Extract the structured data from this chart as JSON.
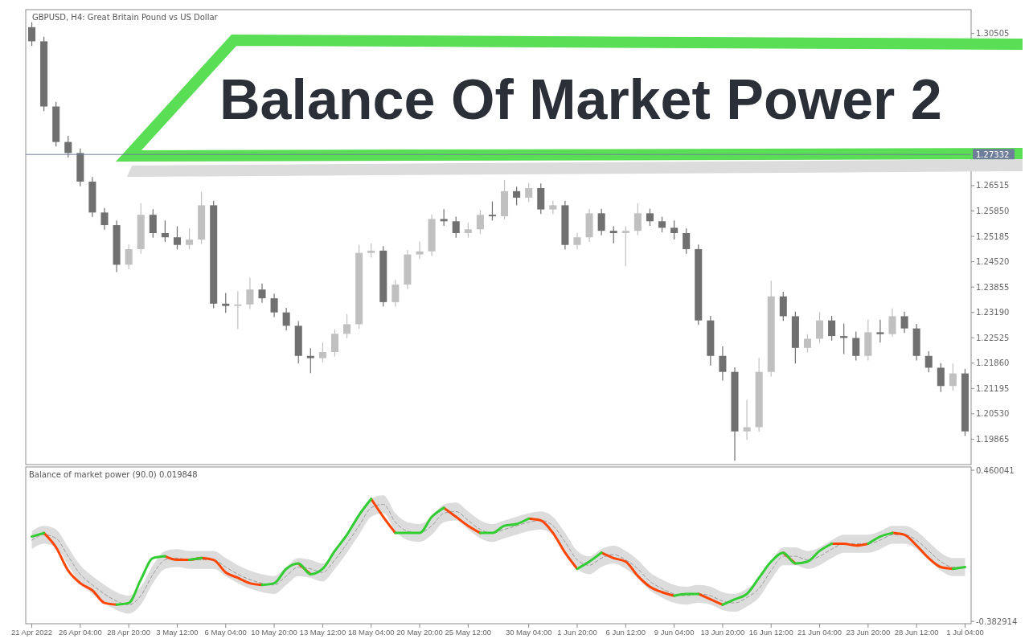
{
  "chart_data": [
    {
      "type": "candlestick",
      "title": "Balance Of Market Power 2",
      "annotations": [
        "GBPUSD, H4:  Great Britain Pound vs US Dollar"
      ],
      "categories": [
        null,
        null,
        null,
        null,
        null,
        null,
        null,
        null,
        null,
        null,
        null,
        null,
        null,
        null,
        null,
        null,
        null,
        null,
        null,
        null,
        null,
        null,
        null,
        null,
        null,
        null,
        null,
        null,
        null,
        null,
        null,
        null,
        null,
        null,
        null,
        null,
        null,
        null,
        null,
        null,
        null,
        null,
        null,
        null,
        null,
        null,
        null,
        null,
        null,
        null,
        null,
        null,
        null,
        null,
        null,
        null,
        null,
        null,
        null,
        null,
        null,
        null,
        null,
        null,
        null,
        null,
        null,
        null,
        null,
        null,
        null,
        null,
        null,
        null,
        null,
        null,
        null,
        null
      ],
      "ohlc": [
        [
          1.3067,
          1.308,
          1.3018,
          1.303
        ],
        [
          1.303,
          1.3042,
          1.2847,
          1.2859
        ],
        [
          1.2859,
          1.2871,
          1.2754,
          1.2766
        ],
        [
          1.2766,
          1.2782,
          1.2725,
          1.2737
        ],
        [
          1.2737,
          1.2749,
          1.265,
          1.2662
        ],
        [
          1.2662,
          1.2674,
          1.2569,
          1.2581
        ],
        [
          1.2581,
          1.2593,
          1.2536,
          1.2548
        ],
        [
          1.2548,
          1.256,
          1.2425,
          1.2444
        ],
        [
          1.2444,
          1.2497,
          1.2432,
          1.2485
        ],
        [
          1.2485,
          1.2605,
          1.2473,
          1.2575
        ],
        [
          1.2575,
          1.259,
          1.2515,
          1.2527
        ],
        [
          1.2527,
          1.256,
          1.2504,
          1.2516
        ],
        [
          1.2516,
          1.2545,
          1.2484,
          1.2496
        ],
        [
          1.2496,
          1.254,
          1.2484,
          1.251
        ],
        [
          1.251,
          1.2635,
          1.2498,
          1.26
        ],
        [
          1.26,
          1.2612,
          1.233,
          1.2342
        ],
        [
          1.2342,
          1.237,
          1.2318,
          1.2336
        ],
        [
          1.2336,
          1.2375,
          1.2275,
          1.234
        ],
        [
          1.234,
          1.241,
          1.2328,
          1.2379
        ],
        [
          1.2379,
          1.2395,
          1.2344,
          1.2356
        ],
        [
          1.2356,
          1.2368,
          1.2307,
          1.2319
        ],
        [
          1.2319,
          1.2331,
          1.2272,
          1.2284
        ],
        [
          1.2284,
          1.2296,
          1.2185,
          1.2205
        ],
        [
          1.2205,
          1.2225,
          1.216,
          1.2199
        ],
        [
          1.2199,
          1.224,
          1.2187,
          1.2215
        ],
        [
          1.2215,
          1.2275,
          1.2203,
          1.2263
        ],
        [
          1.2263,
          1.2315,
          1.2251,
          1.2288
        ],
        [
          1.2288,
          1.2496,
          1.2276,
          1.2475
        ],
        [
          1.2475,
          1.25,
          1.2463,
          1.2481
        ],
        [
          1.2481,
          1.2493,
          1.2334,
          1.2346
        ],
        [
          1.2346,
          1.2404,
          1.2334,
          1.2392
        ],
        [
          1.2392,
          1.2483,
          1.238,
          1.2471
        ],
        [
          1.2471,
          1.2505,
          1.2459,
          1.2479
        ],
        [
          1.2479,
          1.2576,
          1.2467,
          1.2564
        ],
        [
          1.2564,
          1.259,
          1.2546,
          1.2558
        ],
        [
          1.2558,
          1.257,
          1.2515,
          1.2527
        ],
        [
          1.2527,
          1.2555,
          1.2515,
          1.2537
        ],
        [
          1.2537,
          1.2587,
          1.2525,
          1.2575
        ],
        [
          1.2575,
          1.261,
          1.256,
          1.2571
        ],
        [
          1.2571,
          1.2666,
          1.2563,
          1.2637
        ],
        [
          1.2637,
          1.2649,
          1.26,
          1.262
        ],
        [
          1.262,
          1.2658,
          1.2608,
          1.2645
        ],
        [
          1.2645,
          1.2657,
          1.2577,
          1.2589
        ],
        [
          1.2589,
          1.2612,
          1.2577,
          1.26
        ],
        [
          1.26,
          1.2612,
          1.2484,
          1.2496
        ],
        [
          1.2496,
          1.2528,
          1.2484,
          1.2516
        ],
        [
          1.2516,
          1.2591,
          1.2504,
          1.2579
        ],
        [
          1.2579,
          1.2591,
          1.2521,
          1.2533
        ],
        [
          1.2533,
          1.2545,
          1.25,
          1.2527
        ],
        [
          1.2527,
          1.2545,
          1.244,
          1.2533
        ],
        [
          1.2533,
          1.2605,
          1.2521,
          1.2579
        ],
        [
          1.2579,
          1.2591,
          1.2546,
          1.2558
        ],
        [
          1.2558,
          1.257,
          1.2529,
          1.2541
        ],
        [
          1.2541,
          1.256,
          1.251,
          1.2527
        ],
        [
          1.2527,
          1.2539,
          1.2473,
          1.2485
        ],
        [
          1.2485,
          1.2497,
          1.2286,
          1.2298
        ],
        [
          1.2298,
          1.231,
          1.218,
          1.2205
        ],
        [
          1.2205,
          1.223,
          1.214,
          1.2163
        ],
        [
          1.2163,
          1.2175,
          1.193,
          1.2007
        ],
        [
          1.2007,
          1.209,
          1.1985,
          1.2018
        ],
        [
          1.2018,
          1.22,
          1.2006,
          1.2163
        ],
        [
          1.2163,
          1.2402,
          1.2151,
          1.2361
        ],
        [
          1.2361,
          1.2373,
          1.2297,
          1.2309
        ],
        [
          1.2309,
          1.2321,
          1.2185,
          1.2226
        ],
        [
          1.2226,
          1.2262,
          1.2214,
          1.225
        ],
        [
          1.225,
          1.232,
          1.2238,
          1.2298
        ],
        [
          1.2298,
          1.231,
          1.2245,
          1.2257
        ],
        [
          1.2257,
          1.229,
          1.221,
          1.2252
        ],
        [
          1.2252,
          1.2269,
          1.2193,
          1.2205
        ],
        [
          1.2205,
          1.23,
          1.2193,
          1.2267
        ],
        [
          1.2267,
          1.23,
          1.224,
          1.2262
        ],
        [
          1.2262,
          1.233,
          1.2255,
          1.2309
        ],
        [
          1.2309,
          1.2321,
          1.2265,
          1.2277
        ],
        [
          1.2277,
          1.2289,
          1.2193,
          1.2205
        ],
        [
          1.2205,
          1.2217,
          1.2162,
          1.2174
        ],
        [
          1.2174,
          1.2186,
          1.211,
          1.2126
        ],
        [
          1.2126,
          1.2185,
          1.2114,
          1.2159
        ],
        [
          1.2159,
          1.2171,
          1.1995,
          1.2007
        ]
      ],
      "colors": [
        "#707070",
        "#707070",
        "#707070",
        "#707070",
        "#707070",
        "#707070",
        "#707070",
        "#707070",
        "#c0c0c0",
        "#c0c0c0",
        "#707070",
        "#707070",
        "#707070",
        "#c0c0c0",
        "#c0c0c0",
        "#707070",
        "#707070",
        "#c0c0c0",
        "#c0c0c0",
        "#707070",
        "#707070",
        "#707070",
        "#707070",
        "#707070",
        "#c0c0c0",
        "#c0c0c0",
        "#c0c0c0",
        "#c0c0c0",
        "#c0c0c0",
        "#707070",
        "#c0c0c0",
        "#c0c0c0",
        "#c0c0c0",
        "#c0c0c0",
        "#707070",
        "#707070",
        "#c0c0c0",
        "#c0c0c0",
        "#707070",
        "#c0c0c0",
        "#707070",
        "#c0c0c0",
        "#707070",
        "#c0c0c0",
        "#707070",
        "#c0c0c0",
        "#c0c0c0",
        "#707070",
        "#707070",
        "#c0c0c0",
        "#c0c0c0",
        "#707070",
        "#707070",
        "#707070",
        "#707070",
        "#707070",
        "#707070",
        "#707070",
        "#707070",
        "#c0c0c0",
        "#c0c0c0",
        "#c0c0c0",
        "#707070",
        "#707070",
        "#c0c0c0",
        "#c0c0c0",
        "#707070",
        "#707070",
        "#707070",
        "#c0c0c0",
        "#707070",
        "#c0c0c0",
        "#707070",
        "#707070",
        "#707070",
        "#707070",
        "#c0c0c0",
        "#707070"
      ],
      "ylim": [
        1.192,
        1.3113
      ],
      "yticks": [
        1.19865,
        {
          "value": 1.2053,
          "label": "1.20530"
        },
        1.21195,
        {
          "value": 1.2186,
          "label": "1.21860"
        },
        1.22525,
        {
          "value": 1.2319,
          "label": "1.23190"
        },
        1.23855,
        {
          "value": 1.2452,
          "label": "1.24520"
        },
        1.25185,
        {
          "value": 1.2585,
          "label": "1.25850"
        },
        1.26515,
        1.30505
      ],
      "ref_lines": [
        {
          "axis": "y",
          "value": 1.27332,
          "label": "1.27332",
          "color": "#6f7f99"
        }
      ],
      "tick_labels": "y"
    },
    {
      "type": "line",
      "title": "Balance of market power (90.0) 0.019848",
      "categories": [
        "21 Apr 2022",
        null,
        null,
        null,
        "26 Apr 04:00",
        null,
        null,
        null,
        "28 Apr 20:00",
        null,
        null,
        null,
        "3 May 12:00",
        null,
        null,
        null,
        "6 May 04:00",
        null,
        null,
        null,
        "10 May 20:00",
        null,
        null,
        null,
        "13 May 12:00",
        null,
        null,
        null,
        "18 May 04:00",
        null,
        null,
        null,
        "20 May 20:00",
        null,
        null,
        null,
        "25 May 12:00",
        null,
        null,
        null,
        null,
        "30 May 04:00",
        null,
        null,
        null,
        "1 Jun 20:00",
        null,
        null,
        null,
        "6 Jun 12:00",
        null,
        null,
        null,
        "9 Jun 04:00",
        null,
        null,
        null,
        "13 Jun 20:00",
        null,
        null,
        null,
        "16 Jun 12:00",
        null,
        null,
        null,
        "21 Jun 04:00",
        null,
        null,
        null,
        "23 Jun 20:00",
        null,
        null,
        null,
        "28 Jun 12:00",
        null,
        null,
        null,
        "1 Jul 04:00"
      ],
      "series": [
        {
          "color": "#999999",
          "line_style": "dashed",
          "values": [
            0.07,
            0.1,
            0.08,
            -0.02,
            -0.12,
            -0.18,
            -0.23,
            -0.27,
            -0.29,
            -0.24,
            -0.12,
            -0.04,
            -0.03,
            -0.04,
            -0.04,
            -0.04,
            -0.08,
            -0.12,
            -0.15,
            -0.17,
            -0.18,
            -0.13,
            -0.08,
            -0.09,
            -0.11,
            -0.04,
            0.05,
            0.15,
            0.25,
            0.27,
            0.17,
            0.12,
            0.11,
            0.15,
            0.22,
            0.23,
            0.18,
            0.13,
            0.11,
            0.13,
            0.15,
            0.17,
            0.18,
            0.15,
            0.06,
            -0.04,
            -0.07,
            -0.03,
            -0.01,
            -0.04,
            -0.09,
            -0.16,
            -0.2,
            -0.23,
            -0.24,
            -0.23,
            -0.24,
            -0.27,
            -0.28,
            -0.25,
            -0.2,
            -0.1,
            -0.02,
            -0.02,
            -0.04,
            -0.02,
            0.02,
            0.05,
            0.05,
            0.05,
            0.07,
            0.1,
            0.1,
            0.07,
            0.01,
            -0.05,
            -0.08,
            -0.08
          ],
          "upper": [
            0.12,
            0.15,
            0.13,
            0.03,
            -0.07,
            -0.13,
            -0.18,
            -0.22,
            -0.24,
            -0.19,
            -0.07,
            0.01,
            0.02,
            0.01,
            0.01,
            0.01,
            -0.03,
            -0.07,
            -0.1,
            -0.12,
            -0.13,
            -0.08,
            -0.03,
            -0.04,
            -0.06,
            0.01,
            0.1,
            0.2,
            0.3,
            0.32,
            0.22,
            0.17,
            0.16,
            0.2,
            0.27,
            0.28,
            0.23,
            0.18,
            0.16,
            0.18,
            0.2,
            0.22,
            0.23,
            0.2,
            0.11,
            0.01,
            -0.02,
            0.02,
            0.04,
            0.01,
            -0.04,
            -0.11,
            -0.15,
            -0.18,
            -0.19,
            -0.18,
            -0.19,
            -0.22,
            -0.23,
            -0.2,
            -0.15,
            -0.05,
            0.03,
            0.03,
            0.01,
            0.03,
            0.07,
            0.1,
            0.1,
            0.1,
            0.12,
            0.15,
            0.15,
            0.12,
            0.06,
            0.0,
            -0.03,
            -0.03
          ],
          "lower": [
            0.02,
            0.05,
            0.03,
            -0.07,
            -0.17,
            -0.23,
            -0.28,
            -0.32,
            -0.34,
            -0.29,
            -0.17,
            -0.09,
            -0.08,
            -0.09,
            -0.09,
            -0.09,
            -0.13,
            -0.17,
            -0.2,
            -0.22,
            -0.23,
            -0.18,
            -0.13,
            -0.14,
            -0.16,
            -0.09,
            0.0,
            0.1,
            0.2,
            0.22,
            0.12,
            0.07,
            0.06,
            0.1,
            0.17,
            0.18,
            0.13,
            0.08,
            0.06,
            0.08,
            0.1,
            0.12,
            0.13,
            0.1,
            0.01,
            -0.09,
            -0.12,
            -0.08,
            -0.06,
            -0.09,
            -0.14,
            -0.21,
            -0.25,
            -0.28,
            -0.29,
            -0.28,
            -0.29,
            -0.32,
            -0.33,
            -0.3,
            -0.25,
            -0.15,
            -0.07,
            -0.07,
            -0.09,
            -0.07,
            -0.03,
            0.0,
            0.0,
            0.0,
            0.02,
            0.05,
            0.05,
            0.02,
            -0.04,
            -0.1,
            -0.13,
            -0.13
          ]
        },
        {
          "color": "#ff4500",
          "values": [
            null,
            0.11,
            0.03,
            -0.1,
            -0.17,
            -0.21,
            -0.28,
            -0.29,
            null,
            null,
            null,
            -0.02,
            -0.04,
            -0.04,
            -0.03,
            -0.04,
            -0.11,
            -0.14,
            -0.17,
            -0.18,
            null,
            null,
            -0.06,
            -0.12,
            null,
            null,
            null,
            null,
            0.3,
            0.2,
            0.11,
            null,
            null,
            null,
            0.25,
            0.2,
            0.15,
            0.11,
            null,
            null,
            null,
            0.19,
            0.18,
            0.11,
            0.0,
            -0.09,
            null,
            0.0,
            -0.03,
            -0.05,
            -0.13,
            -0.19,
            -0.22,
            -0.24,
            null,
            -0.23,
            -0.26,
            -0.29,
            null,
            null,
            null,
            null,
            0.0,
            -0.06,
            null,
            null,
            0.05,
            0.05,
            0.04,
            0.05,
            null,
            0.11,
            0.1,
            0.04,
            -0.03,
            -0.08,
            -0.09,
            null
          ]
        },
        {
          "color": "#32cd32",
          "values": [
            0.09,
            0.11,
            null,
            null,
            null,
            null,
            null,
            -0.29,
            -0.28,
            -0.15,
            -0.03,
            -0.02,
            null,
            -0.04,
            -0.03,
            null,
            null,
            null,
            null,
            -0.18,
            -0.17,
            -0.09,
            -0.06,
            -0.12,
            -0.09,
            0.01,
            0.1,
            0.21,
            0.3,
            null,
            0.11,
            0.11,
            0.11,
            0.2,
            0.25,
            null,
            null,
            0.11,
            0.11,
            0.15,
            0.16,
            0.19,
            null,
            null,
            null,
            -0.09,
            -0.05,
            0.0,
            null,
            null,
            null,
            null,
            null,
            -0.24,
            -0.23,
            -0.23,
            null,
            -0.29,
            -0.26,
            -0.23,
            -0.14,
            -0.05,
            0.0,
            -0.06,
            -0.05,
            0.01,
            0.05,
            null,
            null,
            0.05,
            0.09,
            0.11,
            null,
            null,
            null,
            null,
            -0.09,
            -0.08
          ]
        }
      ],
      "ylim": [
        -0.396,
        0.478
      ],
      "yticks": [
        -0.382914,
        0.460041
      ]
    }
  ]
}
